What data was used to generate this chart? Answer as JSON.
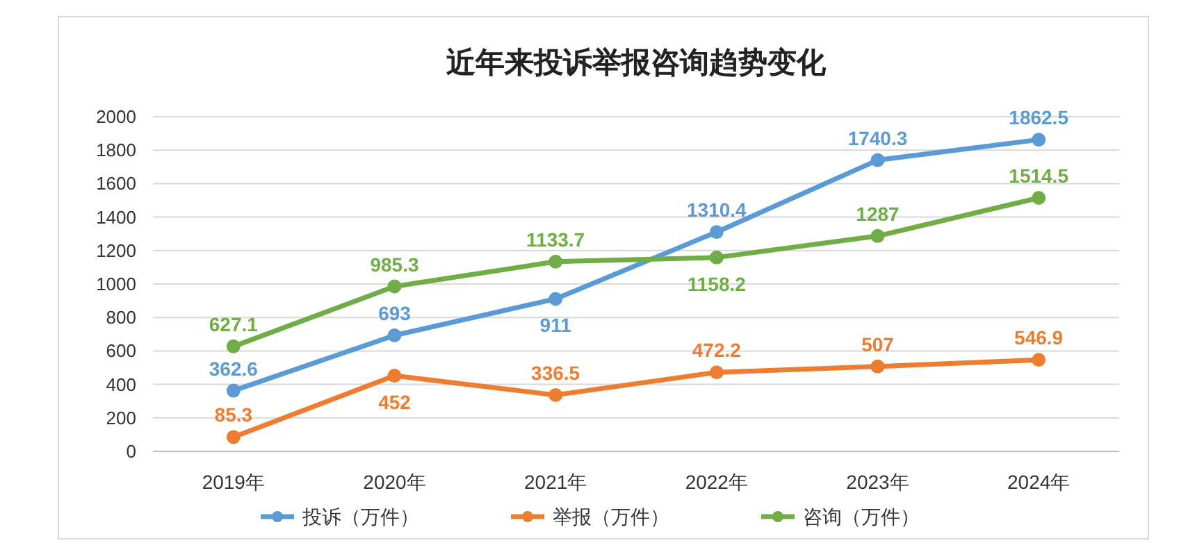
{
  "chart_data": {
    "type": "line",
    "title": "近年来投诉举报咨询趋势变化",
    "categories": [
      "2019年",
      "2020年",
      "2021年",
      "2022年",
      "2023年",
      "2024年"
    ],
    "series": [
      {
        "name": "投诉（万件）",
        "color": "#5b9bd5",
        "values": [
          362.6,
          693,
          911,
          1310.4,
          1740.3,
          1862.5
        ]
      },
      {
        "name": "举报（万件）",
        "color": "#ed7d31",
        "values": [
          85.3,
          452,
          336.5,
          472.2,
          507,
          546.9
        ]
      },
      {
        "name": "咨询（万件）",
        "color": "#70ad47",
        "values": [
          627.1,
          985.3,
          1133.7,
          1158.2,
          1287,
          1514.5
        ]
      }
    ],
    "ylim": [
      0,
      2000
    ],
    "yticks": [
      0,
      200,
      400,
      600,
      800,
      1000,
      1200,
      1400,
      1600,
      1800,
      2000
    ],
    "grid": "y",
    "legend": "bottom",
    "marker": "circle",
    "line_style": "solid",
    "data_labels": true
  }
}
